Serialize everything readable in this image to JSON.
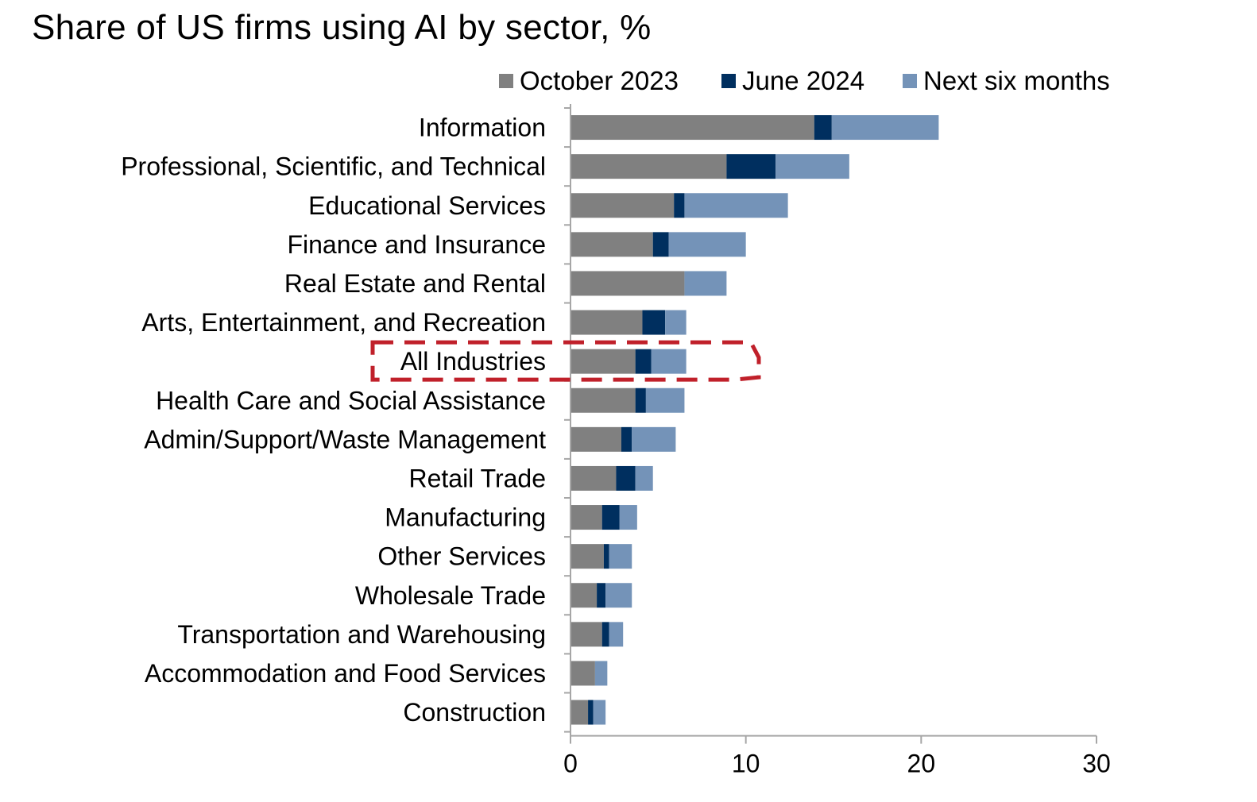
{
  "chart_data": {
    "type": "bar",
    "orientation": "horizontal",
    "stacked": true,
    "title": "Share of US firms using AI by sector, %",
    "categories": [
      "Information",
      "Professional, Scientific, and Technical",
      "Educational Services",
      "Finance and Insurance",
      "Real Estate and Rental",
      "Arts, Entertainment, and Recreation",
      "All Industries",
      "Health Care and Social Assistance",
      "Admin/Support/Waste Management",
      "Retail Trade",
      "Manufacturing",
      "Other Services",
      "Wholesale Trade",
      "Transportation and Warehousing",
      "Accommodation and Food Services",
      "Construction"
    ],
    "series": [
      {
        "name": "October 2023",
        "color": "#808080",
        "values": [
          13.9,
          8.9,
          5.9,
          4.7,
          6.5,
          4.1,
          3.7,
          3.7,
          2.9,
          2.6,
          1.8,
          1.9,
          1.5,
          1.8,
          1.4,
          1.0
        ]
      },
      {
        "name": "June 2024",
        "color": "#002f5f",
        "values": [
          1.0,
          2.8,
          0.6,
          0.9,
          0.0,
          1.3,
          0.9,
          0.6,
          0.6,
          1.1,
          1.0,
          0.3,
          0.5,
          0.4,
          0.0,
          0.3
        ]
      },
      {
        "name": "Next six months",
        "color": "#7493b8",
        "values": [
          6.1,
          4.2,
          5.9,
          4.4,
          2.4,
          1.2,
          2.0,
          2.2,
          2.5,
          1.0,
          1.0,
          1.3,
          1.5,
          0.8,
          0.7,
          0.7
        ]
      }
    ],
    "xlim": [
      0,
      30
    ],
    "xticks": [
      0,
      10,
      20,
      30
    ],
    "xlabel": "",
    "ylabel": "",
    "grid": false,
    "legend": {
      "placement": "top"
    },
    "highlight": {
      "category": "All Industries",
      "style": "dashed-box",
      "color": "#c0202a"
    }
  }
}
